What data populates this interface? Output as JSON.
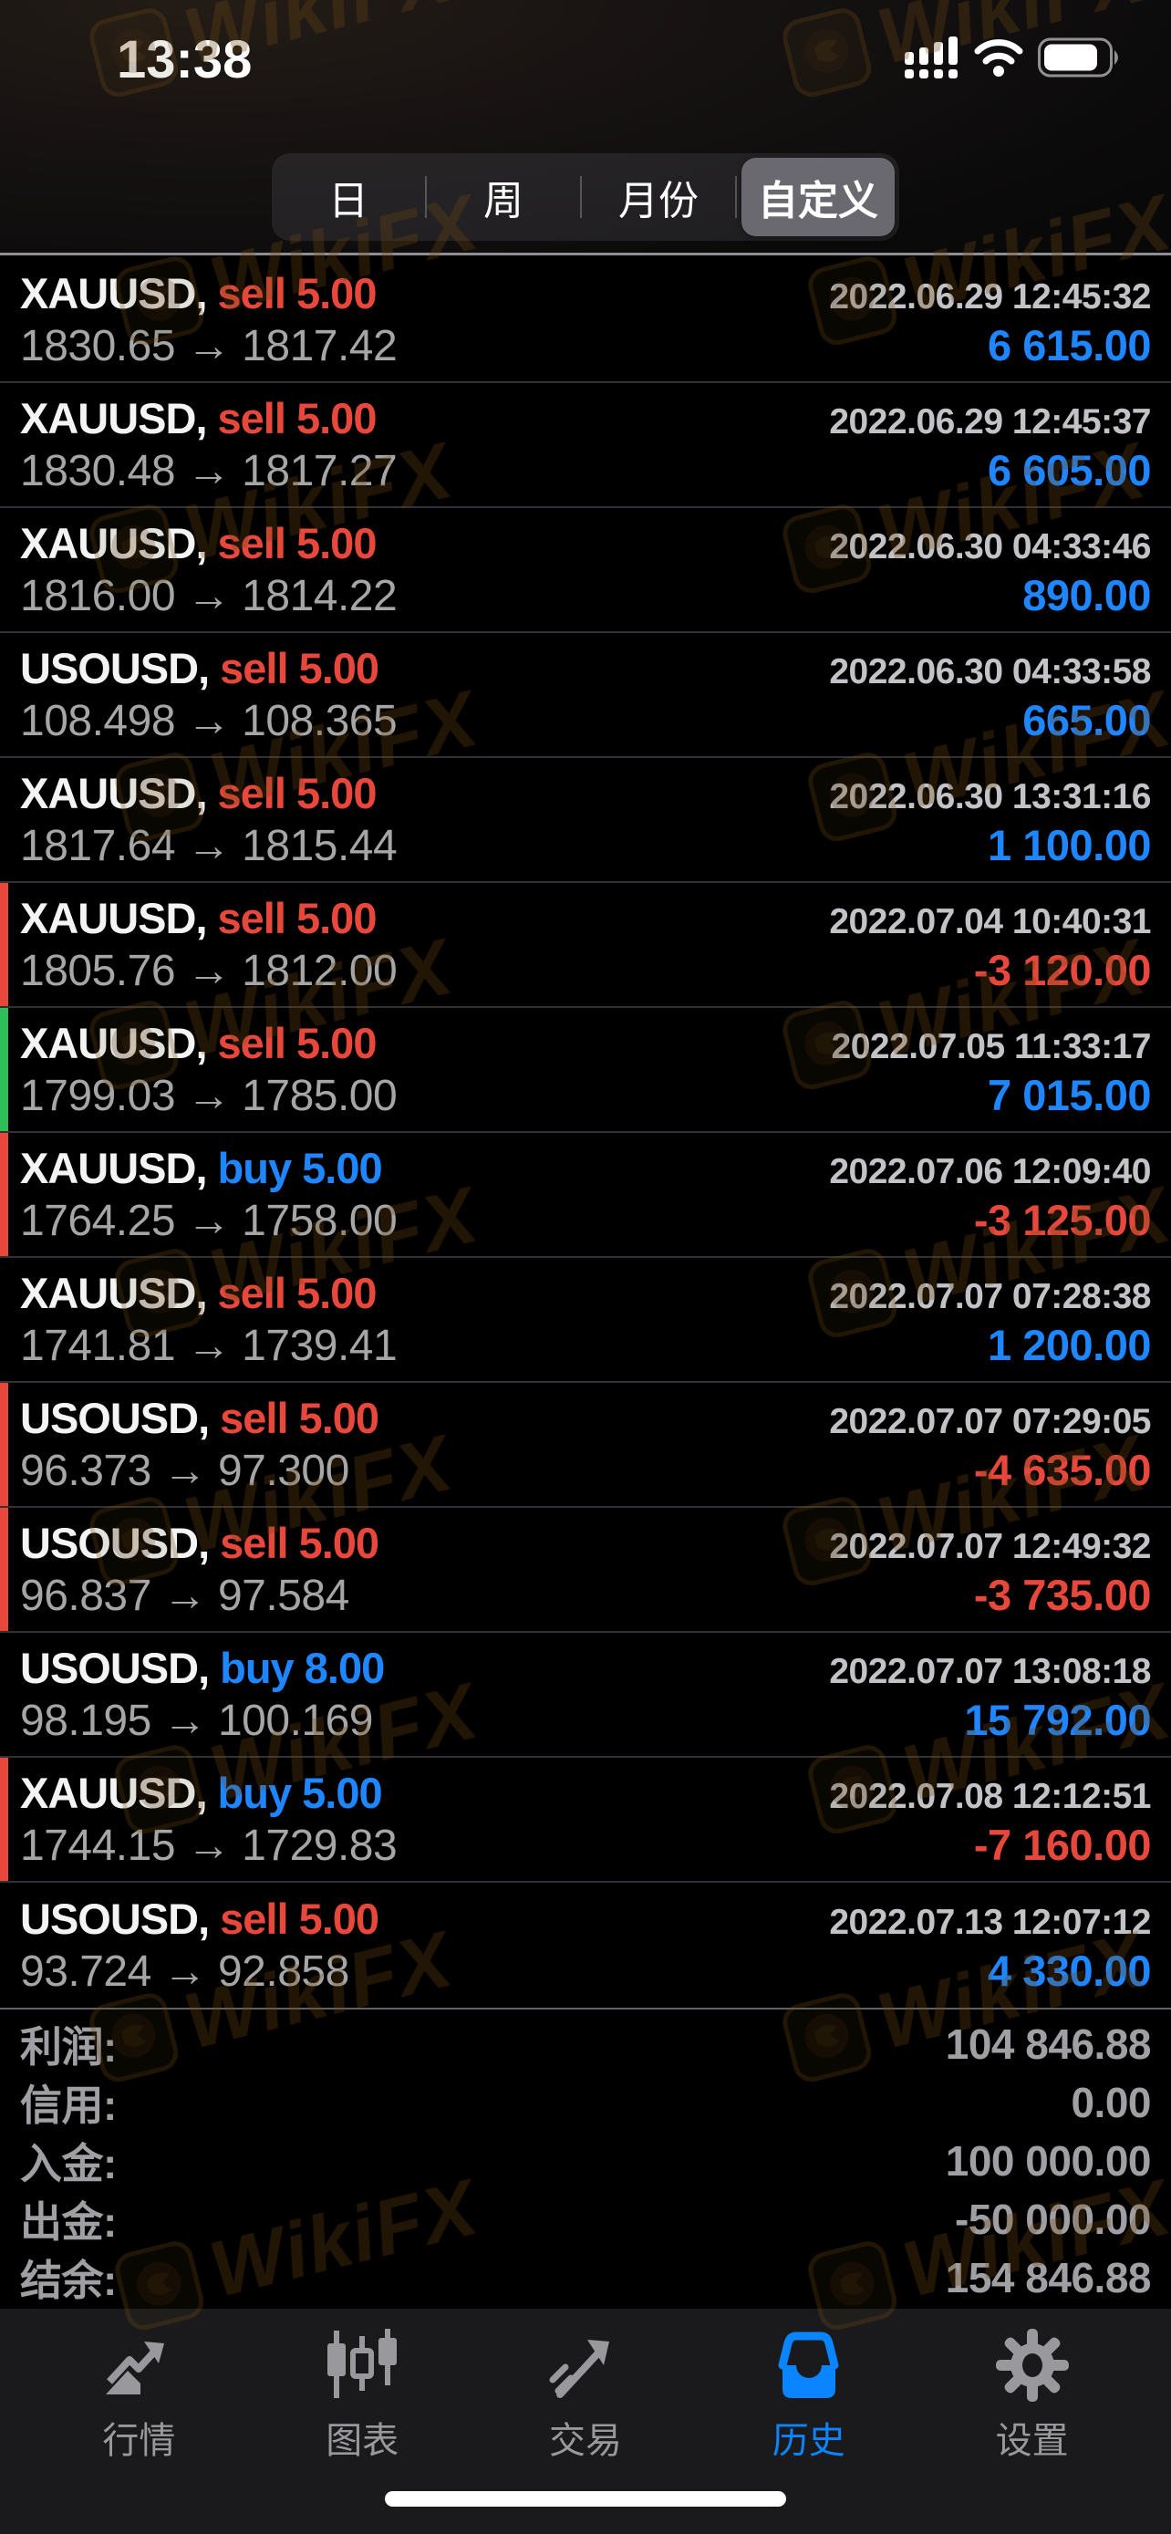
{
  "status_bar": {
    "time": "13:38",
    "icons": [
      "cellular-signal-icon",
      "wifi-icon",
      "battery-icon"
    ]
  },
  "filter_tabs": {
    "options": [
      {
        "label": "日",
        "selected": false
      },
      {
        "label": "周",
        "selected": false
      },
      {
        "label": "月份",
        "selected": false
      },
      {
        "label": "自定义",
        "selected": true
      }
    ]
  },
  "trades": [
    {
      "symbol_label": "XAUUSD,",
      "side": "sell",
      "side_label": "sell 5.00",
      "datetime": "2022.06.29 12:45:32",
      "prices": "1830.65 → 1817.42",
      "profit": "6 615.00",
      "profit_color": "blue",
      "bar": null
    },
    {
      "symbol_label": "XAUUSD,",
      "side": "sell",
      "side_label": "sell 5.00",
      "datetime": "2022.06.29 12:45:37",
      "prices": "1830.48 → 1817.27",
      "profit": "6 605.00",
      "profit_color": "blue",
      "bar": null
    },
    {
      "symbol_label": "XAUUSD,",
      "side": "sell",
      "side_label": "sell 5.00",
      "datetime": "2022.06.30 04:33:46",
      "prices": "1816.00 → 1814.22",
      "profit": "890.00",
      "profit_color": "blue",
      "bar": null
    },
    {
      "symbol_label": "USOUSD,",
      "side": "sell",
      "side_label": "sell 5.00",
      "datetime": "2022.06.30 04:33:58",
      "prices": "108.498 → 108.365",
      "profit": "665.00",
      "profit_color": "blue",
      "bar": null
    },
    {
      "symbol_label": "XAUUSD,",
      "side": "sell",
      "side_label": "sell 5.00",
      "datetime": "2022.06.30 13:31:16",
      "prices": "1817.64 → 1815.44",
      "profit": "1 100.00",
      "profit_color": "blue",
      "bar": null
    },
    {
      "symbol_label": "XAUUSD,",
      "side": "sell",
      "side_label": "sell 5.00",
      "datetime": "2022.07.04 10:40:31",
      "prices": "1805.76 → 1812.00",
      "profit": "-3 120.00",
      "profit_color": "red",
      "bar": "red"
    },
    {
      "symbol_label": "XAUUSD,",
      "side": "sell",
      "side_label": "sell 5.00",
      "datetime": "2022.07.05 11:33:17",
      "prices": "1799.03 → 1785.00",
      "profit": "7 015.00",
      "profit_color": "blue",
      "bar": "green"
    },
    {
      "symbol_label": "XAUUSD,",
      "side": "buy",
      "side_label": "buy 5.00",
      "datetime": "2022.07.06 12:09:40",
      "prices": "1764.25 → 1758.00",
      "profit": "-3 125.00",
      "profit_color": "red",
      "bar": "red"
    },
    {
      "symbol_label": "XAUUSD,",
      "side": "sell",
      "side_label": "sell 5.00",
      "datetime": "2022.07.07 07:28:38",
      "prices": "1741.81 → 1739.41",
      "profit": "1 200.00",
      "profit_color": "blue",
      "bar": null
    },
    {
      "symbol_label": "USOUSD,",
      "side": "sell",
      "side_label": "sell 5.00",
      "datetime": "2022.07.07 07:29:05",
      "prices": "96.373 → 97.300",
      "profit": "-4 635.00",
      "profit_color": "red",
      "bar": "red"
    },
    {
      "symbol_label": "USOUSD,",
      "side": "sell",
      "side_label": "sell 5.00",
      "datetime": "2022.07.07 12:49:32",
      "prices": "96.837 → 97.584",
      "profit": "-3 735.00",
      "profit_color": "red",
      "bar": "red"
    },
    {
      "symbol_label": "USOUSD,",
      "side": "buy",
      "side_label": "buy 8.00",
      "datetime": "2022.07.07 13:08:18",
      "prices": "98.195 → 100.169",
      "profit": "15 792.00",
      "profit_color": "blue",
      "bar": null
    },
    {
      "symbol_label": "XAUUSD,",
      "side": "buy",
      "side_label": "buy 5.00",
      "datetime": "2022.07.08 12:12:51",
      "prices": "1744.15 → 1729.83",
      "profit": "-7 160.00",
      "profit_color": "red",
      "bar": "red"
    },
    {
      "symbol_label": "USOUSD,",
      "side": "sell",
      "side_label": "sell 5.00",
      "datetime": "2022.07.13 12:07:12",
      "prices": "93.724 → 92.858",
      "profit": "4 330.00",
      "profit_color": "blue",
      "bar": null
    }
  ],
  "summary": {
    "rows": [
      {
        "label": "利润:",
        "value": "104 846.88"
      },
      {
        "label": "信用:",
        "value": "0.00"
      },
      {
        "label": "入金:",
        "value": "100 000.00"
      },
      {
        "label": "出金:",
        "value": "-50 000.00"
      },
      {
        "label": "结余:",
        "value": "154 846.88"
      }
    ]
  },
  "tab_bar": {
    "items": [
      {
        "label": "行情",
        "icon": "quotes-trend-icon",
        "active": false
      },
      {
        "label": "图表",
        "icon": "candlestick-chart-icon",
        "active": false
      },
      {
        "label": "交易",
        "icon": "trade-arrow-icon",
        "active": false
      },
      {
        "label": "历史",
        "icon": "history-toolbox-icon",
        "active": true
      },
      {
        "label": "设置",
        "icon": "settings-gear-icon",
        "active": false
      }
    ]
  },
  "watermark": {
    "text": "WikiFX"
  },
  "colors": {
    "loss_red": "#e8473c",
    "profit_blue": "#1e86ff",
    "win_green": "#2fbf58",
    "tab_blue": "#0a84ff"
  }
}
